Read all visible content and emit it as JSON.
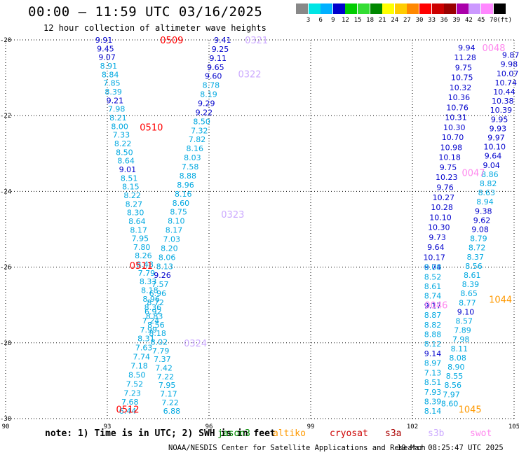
{
  "header": {
    "title": "00:00 – 11:59 UTC 03/16/2025",
    "subtitle": "12 hour collection of altimeter wave heights"
  },
  "colorbar": {
    "unit": "(ft)",
    "colors": [
      "#888888",
      "#00e5e5",
      "#00b0ff",
      "#0000cc",
      "#00cc00",
      "#33dd33",
      "#008800",
      "#ffff00",
      "#ffcc00",
      "#ff8800",
      "#ff0000",
      "#cc0000",
      "#990000",
      "#aa00aa",
      "#cc99ff",
      "#ff88ff",
      "#000000"
    ],
    "labels": [
      "3",
      "6",
      "9",
      "12",
      "15",
      "18",
      "21",
      "24",
      "27",
      "30",
      "33",
      "36",
      "39",
      "42",
      "45",
      "70"
    ]
  },
  "map": {
    "lon_ticks": [
      "90",
      "93",
      "96",
      "99",
      "102",
      "105"
    ],
    "lat_ticks": [
      "-20",
      "-22",
      "-24",
      "-26",
      "-28",
      "-30"
    ],
    "xlim": [
      90,
      105
    ],
    "ylim": [
      -30,
      -20
    ]
  },
  "colors": {
    "swh_blue": "#0000cc",
    "swh_cyan": "#00a8e0",
    "pass_red": "#ff0000",
    "pass_violet": "#ccaaff",
    "pass_pink": "#ff88ee",
    "pass_orange": "#ff9900"
  },
  "tracks": [
    {
      "x0": 92.9,
      "x1": 94.9,
      "y0": -20.0,
      "y1": -29.8,
      "values": [
        "9.91",
        "9.45",
        "9.07",
        "8.91",
        "8.84",
        "7.85",
        "8.39",
        "9.21",
        "7.98",
        "8.21",
        "8.00",
        "7.33",
        "8.22",
        "8.50",
        "8.64",
        "9.01",
        "8.51",
        "8.15",
        "8.22",
        "8.27",
        "8.30",
        "8.64",
        "8.17",
        "7.95",
        "7.80",
        "8.26",
        "8.48",
        "7.79",
        "8.33",
        "8.18",
        "8.96",
        "8.36",
        "8.83",
        "8.56",
        "8.18",
        "8.02",
        "7.79",
        "7.37",
        "7.42",
        "7.22",
        "7.95",
        "7.17",
        "7.22",
        "6.88"
      ]
    },
    {
      "x0": 96.4,
      "x1": 93.6,
      "y0": -20.0,
      "y1": -29.8,
      "values": [
        "9.41",
        "9.25",
        "9.11",
        "9.65",
        "9.60",
        "8.78",
        "8.19",
        "9.29",
        "9.22",
        "8.50",
        "7.32",
        "7.82",
        "8.16",
        "8.03",
        "7.58",
        "8.88",
        "8.96",
        "8.16",
        "8.60",
        "8.75",
        "8.10",
        "8.17",
        "7.03",
        "8.20",
        "8.06",
        "8.13",
        "9.26",
        "7.57",
        "6.96",
        "8.72",
        "6.92",
        "7.24",
        "7.99",
        "8.31",
        "7.63",
        "7.74",
        "7.18",
        "8.50",
        "7.52",
        "7.23",
        "7.68",
        "6.44"
      ]
    },
    {
      "x0": 103.6,
      "x1": 102.6,
      "y0": -20.2,
      "y1": -26.0,
      "values": [
        "9.94",
        "11.28",
        "9.75",
        "10.75",
        "10.32",
        "10.36",
        "10.76",
        "10.31",
        "10.30",
        "10.70",
        "10.98",
        "10.18",
        "9.75",
        "10.23",
        "9.76",
        "10.27",
        "10.28",
        "10.10",
        "10.30",
        "9.73",
        "9.64",
        "10.17",
        "9.74"
      ]
    },
    {
      "x0": 102.6,
      "x1": 102.6,
      "y0": -26.0,
      "y1": -29.8,
      "values": [
        "8.08",
        "8.52",
        "8.61",
        "8.74",
        "9.17",
        "8.87",
        "8.82",
        "8.88",
        "8.12",
        "9.14",
        "8.97",
        "7.13",
        "8.51",
        "7.93",
        "8.39",
        "8.14"
      ]
    },
    {
      "x0": 104.9,
      "x1": 103.1,
      "y0": -20.4,
      "y1": -29.6,
      "values": [
        "9.87",
        "9.98",
        "10.07",
        "10.74",
        "10.44",
        "10.38",
        "10.39",
        "9.95",
        "9.93",
        "9.97",
        "10.10",
        "9.64",
        "9.04",
        "8.86",
        "8.82",
        "8.63",
        "8.94",
        "9.38",
        "9.62",
        "9.08",
        "8.79",
        "8.72",
        "8.37",
        "8.56",
        "8.61",
        "8.39",
        "8.65",
        "8.77",
        "9.10",
        "8.57",
        "7.89",
        "7.98",
        "8.11",
        "8.08",
        "8.90",
        "8.55",
        "8.56",
        "7.97",
        "8.60"
      ]
    }
  ],
  "pass_labels": [
    {
      "text": "0509",
      "lon": 94.9,
      "lat": -20.0,
      "color": "#ff0000"
    },
    {
      "text": "0510",
      "lon": 94.3,
      "lat": -22.3,
      "color": "#ff0000"
    },
    {
      "text": "0511",
      "lon": 94.0,
      "lat": -25.95,
      "color": "#ff0000"
    },
    {
      "text": "0512",
      "lon": 93.6,
      "lat": -29.75,
      "color": "#ff0000"
    },
    {
      "text": "0321",
      "lon": 97.4,
      "lat": -20.0,
      "color": "#ccaaff"
    },
    {
      "text": "0322",
      "lon": 97.2,
      "lat": -20.9,
      "color": "#ccaaff"
    },
    {
      "text": "0323",
      "lon": 96.7,
      "lat": -24.6,
      "color": "#ccaaff"
    },
    {
      "text": "0324",
      "lon": 95.6,
      "lat": -28.0,
      "color": "#ccaaff"
    },
    {
      "text": "0048",
      "lon": 104.4,
      "lat": -20.2,
      "color": "#ff88ee"
    },
    {
      "text": "0047",
      "lon": 103.8,
      "lat": -23.5,
      "color": "#ff88ee"
    },
    {
      "text": "0046",
      "lon": 102.7,
      "lat": -27.0,
      "color": "#ff88ee"
    },
    {
      "text": "1044",
      "lon": 104.6,
      "lat": -26.85,
      "color": "#ff9900"
    },
    {
      "text": "1045",
      "lon": 103.7,
      "lat": -29.75,
      "color": "#ff9900"
    }
  ],
  "note": "note: 1) Time is in UTC; 2) SWH is in feet",
  "satellites": [
    {
      "name": "jason3",
      "color": "#008800",
      "x": 310
    },
    {
      "name": "altiko",
      "color": "#ff9900",
      "x": 389
    },
    {
      "name": "cryosat",
      "color": "#cc0000",
      "x": 470
    },
    {
      "name": "s3a",
      "color": "#aa0000",
      "x": 549
    },
    {
      "name": "s3b",
      "color": "#ccaaff",
      "x": 610
    },
    {
      "name": "swot",
      "color": "#ff88ee",
      "x": 670
    }
  ],
  "footer": {
    "left": "NOAA/NESDIS Center for Satellite Applications and Research",
    "right": "19 Mar 08:25:47 UTC 2025"
  }
}
